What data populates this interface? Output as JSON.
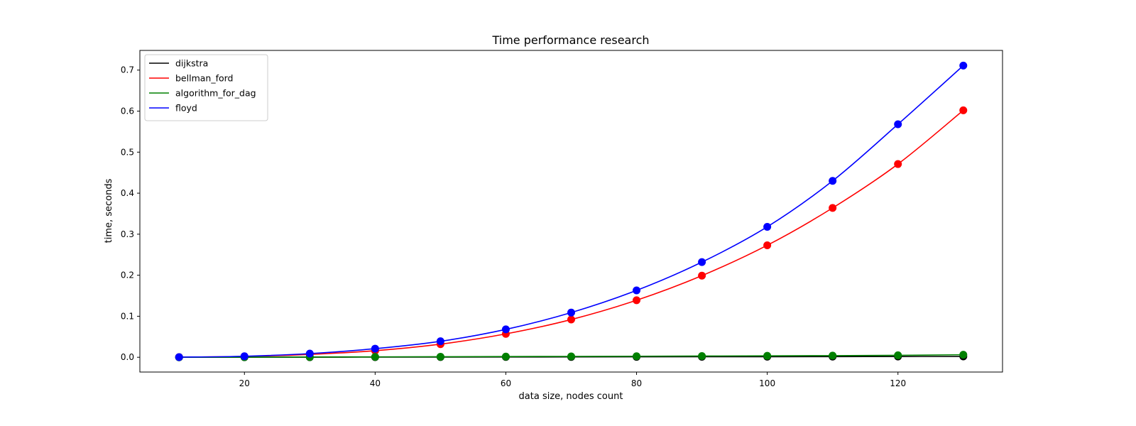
{
  "chart_data": {
    "type": "line",
    "title": "Time performance research",
    "xlabel": "data size, nodes count",
    "ylabel": "time, seconds",
    "xlim": [
      4,
      136
    ],
    "ylim": [
      -0.036,
      0.748
    ],
    "xticks": [
      20,
      40,
      60,
      80,
      100,
      120
    ],
    "yticks": [
      0.0,
      0.1,
      0.2,
      0.3,
      0.4,
      0.5,
      0.6,
      0.7
    ],
    "grid": false,
    "legend_position": "top-left",
    "x": [
      10,
      20,
      30,
      40,
      50,
      60,
      70,
      80,
      90,
      100,
      110,
      120,
      130
    ],
    "series": [
      {
        "name": "dijkstra",
        "color": "#000000",
        "values": [
          0.0,
          0.0001,
          0.0002,
          0.0004,
          0.0005,
          0.0007,
          0.0008,
          0.001,
          0.0012,
          0.0014,
          0.0016,
          0.0018,
          0.002
        ]
      },
      {
        "name": "bellman_ford",
        "color": "#ff0000",
        "values": [
          0.0003,
          0.002,
          0.007,
          0.016,
          0.032,
          0.057,
          0.092,
          0.139,
          0.199,
          0.273,
          0.364,
          0.471,
          0.602
        ]
      },
      {
        "name": "algorithm_for_dag",
        "color": "#008000",
        "values": [
          0.0,
          0.0003,
          0.0006,
          0.001,
          0.0013,
          0.0017,
          0.0021,
          0.0025,
          0.003,
          0.0035,
          0.004,
          0.0048,
          0.0062
        ]
      },
      {
        "name": "floyd",
        "color": "#0000ff",
        "values": [
          0.0003,
          0.0025,
          0.009,
          0.021,
          0.039,
          0.068,
          0.109,
          0.163,
          0.232,
          0.318,
          0.43,
          0.568,
          0.711
        ]
      }
    ]
  }
}
